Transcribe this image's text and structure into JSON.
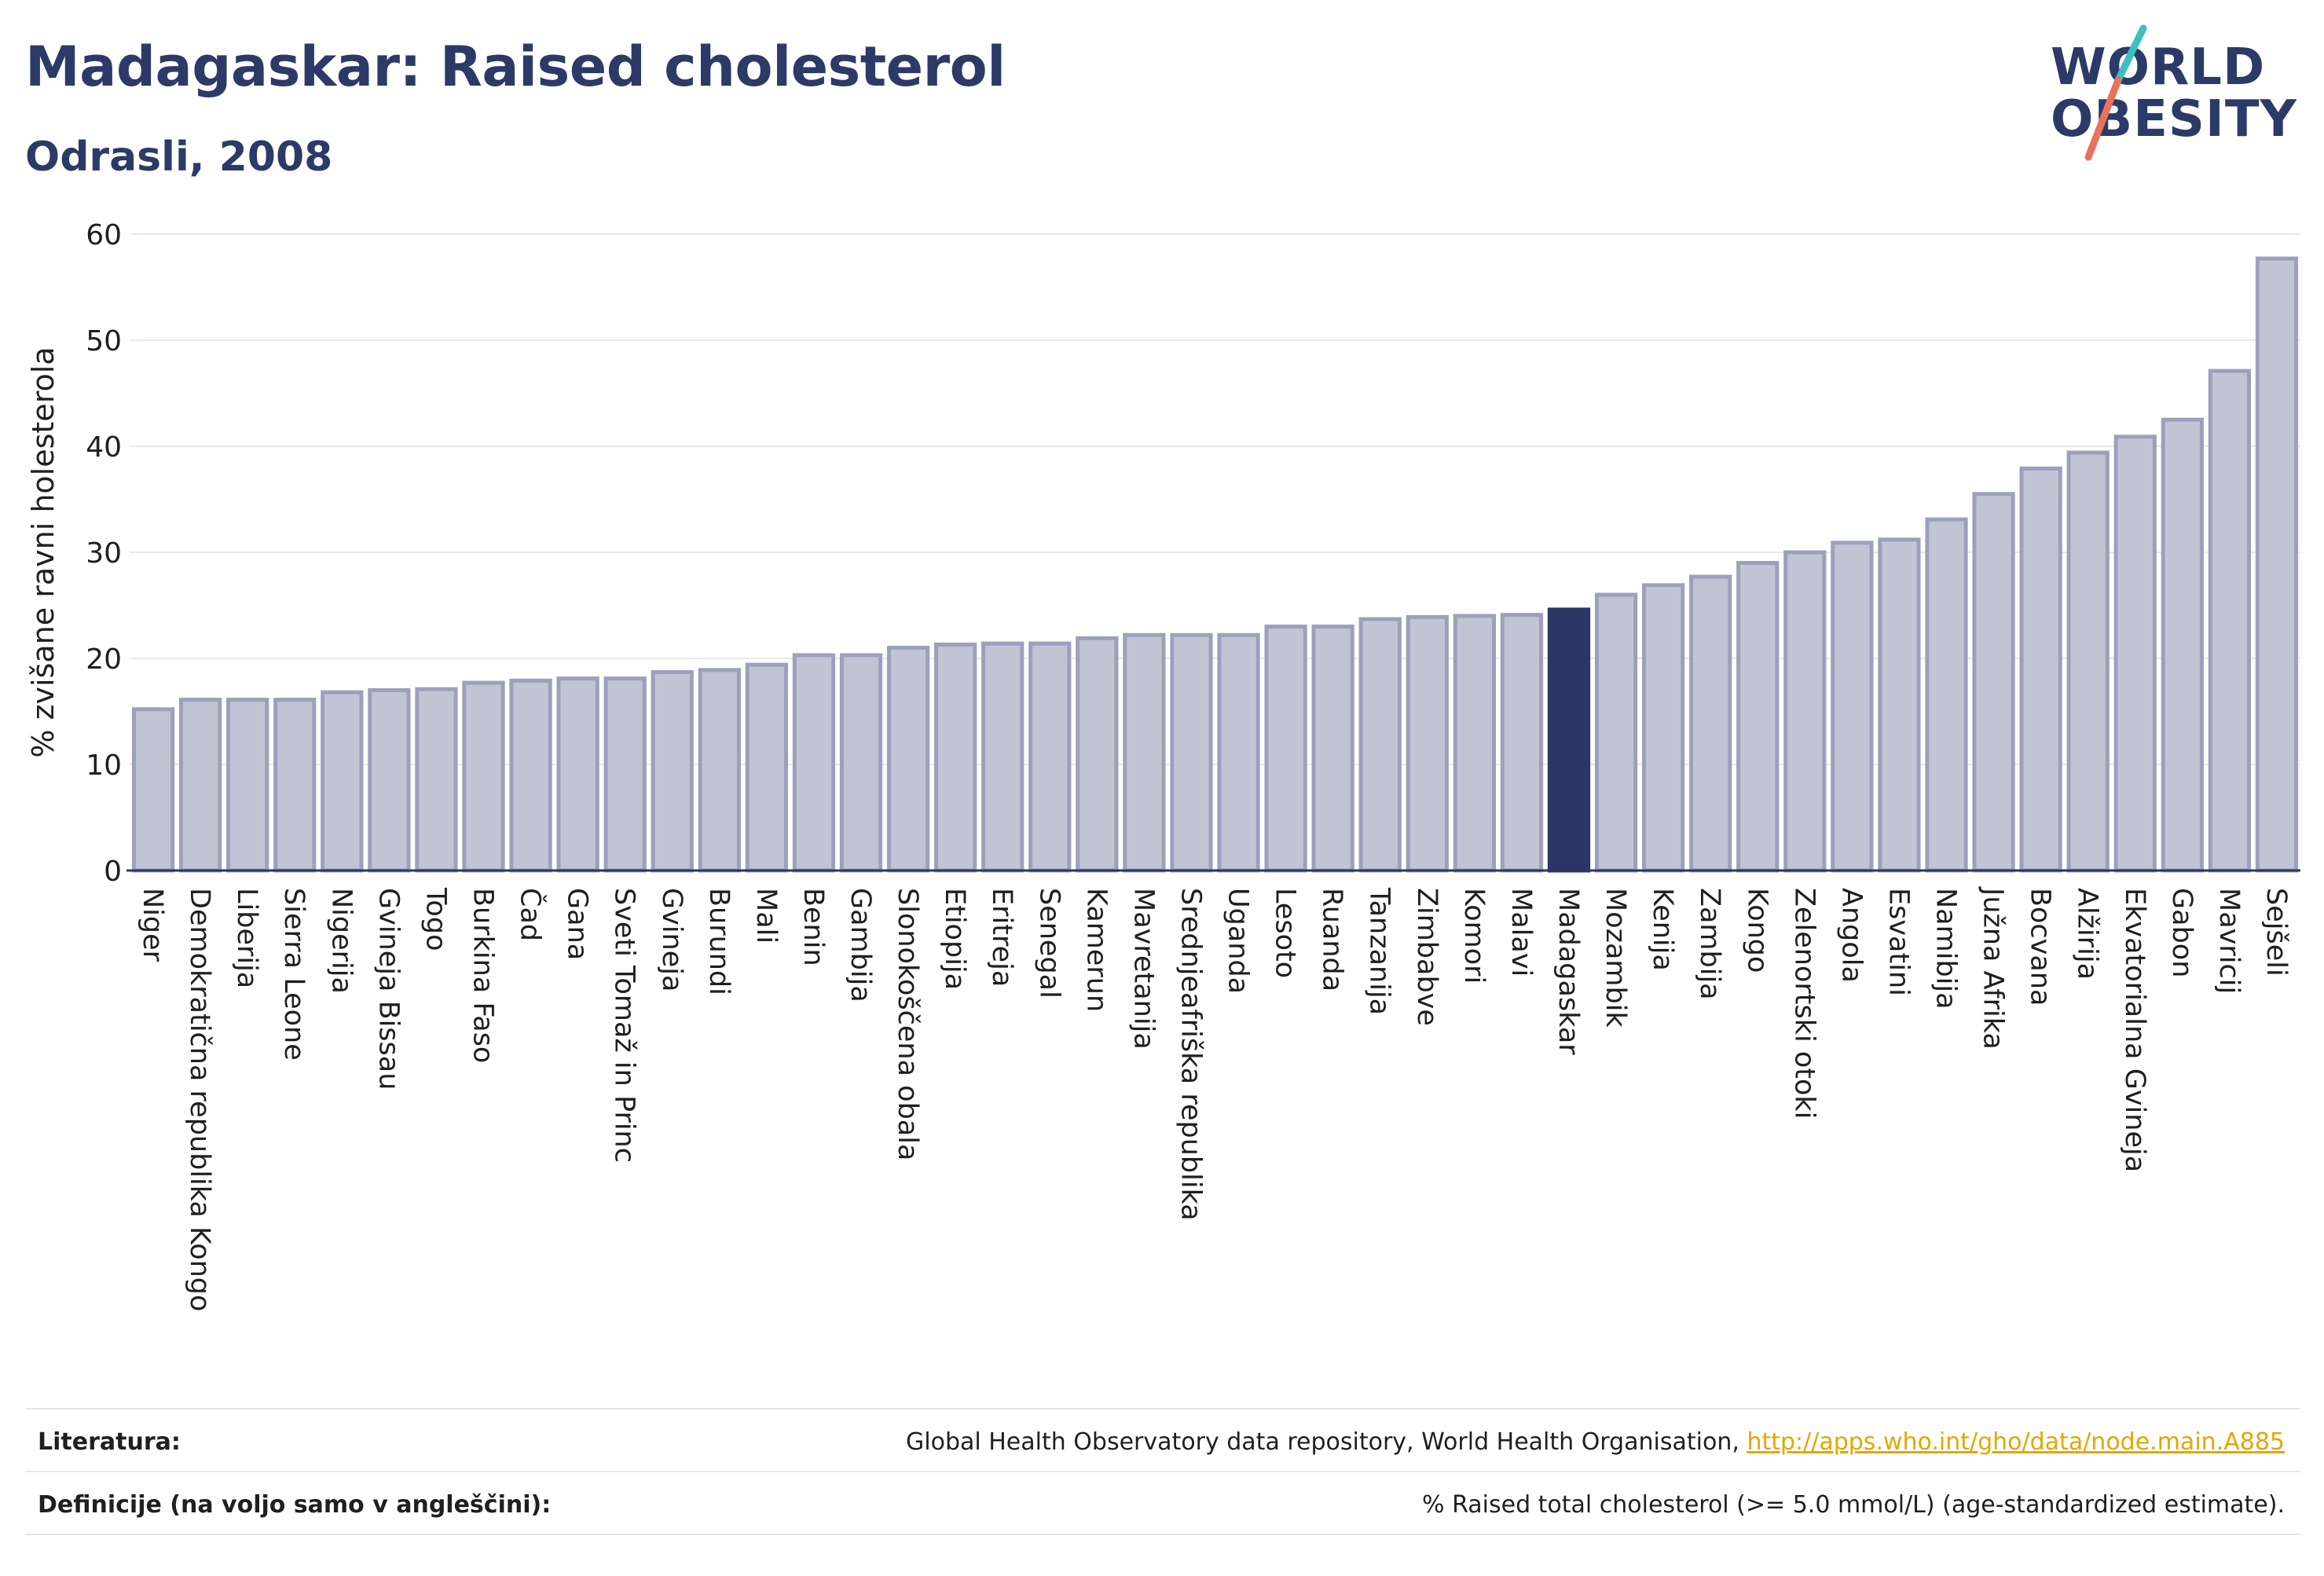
{
  "header": {
    "title": "Madagaskar: Raised cholesterol",
    "subtitle": "Odrasli, 2008"
  },
  "logo": {
    "line1": "WORLD",
    "line2": "OBESITY",
    "colors": {
      "text": "#2b3a67",
      "teal": "#3dbfbf",
      "coral": "#e8735a"
    }
  },
  "chart_data": {
    "type": "bar",
    "ylabel": "% zvišane ravni holesterola",
    "ylim": [
      0,
      60
    ],
    "yticks": [
      0,
      10,
      20,
      30,
      40,
      50,
      60
    ],
    "grid": true,
    "highlight": "Madagaskar",
    "colors": {
      "bar": "#c1c5d3",
      "bar_stroke": "#9ba1ba",
      "highlight": "#2b3566",
      "grid": "#e6e8ee",
      "axis": "#2b3566"
    },
    "categories": [
      "Niger",
      "Demokratična republika Kongo",
      "Liberija",
      "Sierra Leone",
      "Nigerija",
      "Gvineja Bissau",
      "Togo",
      "Burkina Faso",
      "Čad",
      "Gana",
      "Sveti Tomaž in Princ",
      "Gvineja",
      "Burundi",
      "Mali",
      "Benin",
      "Gambija",
      "Slonokoščena obala",
      "Etiopija",
      "Eritreja",
      "Senegal",
      "Kamerun",
      "Mavretanija",
      "Srednjeafriška republika",
      "Uganda",
      "Lesoto",
      "Ruanda",
      "Tanzanija",
      "Zimbabve",
      "Komori",
      "Malavi",
      "Madagaskar",
      "Mozambik",
      "Kenija",
      "Zambija",
      "Kongo",
      "Zelenortski otoki",
      "Angola",
      "Esvatini",
      "Namibija",
      "Južna Afrika",
      "Bocvana",
      "Alžirija",
      "Ekvatorialna Gvineja",
      "Gabon",
      "Mavricij",
      "Sejšeli"
    ],
    "values": [
      15.2,
      16.1,
      16.1,
      16.1,
      16.8,
      17.0,
      17.1,
      17.7,
      17.9,
      18.1,
      18.1,
      18.7,
      18.9,
      19.4,
      20.3,
      20.3,
      21.0,
      21.3,
      21.4,
      21.4,
      21.9,
      22.2,
      22.2,
      22.2,
      23.0,
      23.0,
      23.7,
      23.9,
      24.0,
      24.1,
      24.6,
      26.0,
      26.9,
      27.7,
      29.0,
      30.0,
      30.9,
      31.2,
      33.1,
      35.5,
      37.9,
      39.4,
      40.9,
      42.5,
      47.1,
      57.7
    ]
  },
  "footer": {
    "sources_label": "Literatura:",
    "sources_text": "Global Health Observatory data repository, World Health Organisation, ",
    "sources_link": "http://apps.who.int/gho/data/node.main.A885",
    "definitions_label": "Definicije (na voljo samo v angleščini):",
    "definitions_text": "% Raised total cholesterol (>= 5.0 mmol/L) (age-standardized estimate)."
  }
}
